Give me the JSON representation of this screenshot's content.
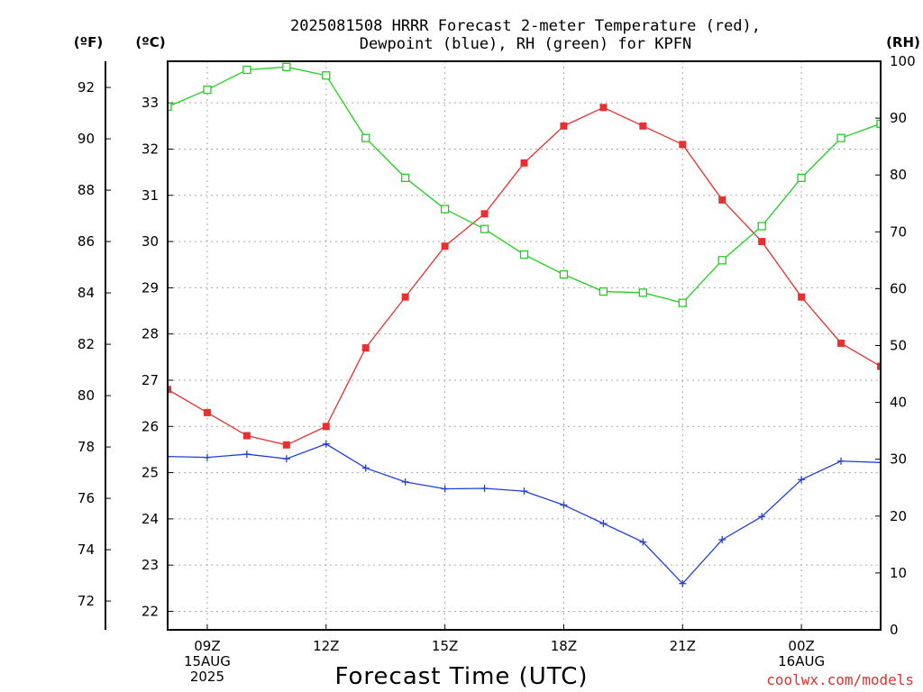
{
  "chart_data": {
    "type": "line",
    "title_lines": [
      "2025081508 HRRR Forecast 2-meter Temperature (red),",
      "Dewpoint (blue), RH (green) for KPFN"
    ],
    "units": {
      "fahrenheit": "(ºF)",
      "celsius": "(ºC)",
      "rh": "(RH)"
    },
    "xlabel": "Forecast Time (UTC)",
    "watermark": "coolwx.com/models",
    "x_hours": [
      0,
      1,
      2,
      3,
      4,
      5,
      6,
      7,
      8,
      9,
      10,
      11,
      12,
      13,
      14,
      15,
      16,
      17,
      18
    ],
    "x_ticks": [
      {
        "hour": 1,
        "lines": [
          "09Z",
          "15AUG",
          "2025"
        ]
      },
      {
        "hour": 4,
        "lines": [
          "12Z"
        ]
      },
      {
        "hour": 7,
        "lines": [
          "15Z"
        ]
      },
      {
        "hour": 10,
        "lines": [
          "18Z"
        ]
      },
      {
        "hour": 13,
        "lines": [
          "21Z"
        ]
      },
      {
        "hour": 16,
        "lines": [
          "00Z",
          "16AUG"
        ]
      }
    ],
    "celsius_axis": {
      "min": 21.6,
      "max": 33.9,
      "ticks": [
        22,
        23,
        24,
        25,
        26,
        27,
        28,
        29,
        30,
        31,
        32,
        33
      ]
    },
    "fahrenheit_axis": {
      "ticks": [
        72,
        74,
        76,
        78,
        80,
        82,
        84,
        86,
        88,
        90,
        92
      ]
    },
    "rh_axis": {
      "min": 0,
      "max": 100,
      "ticks": [
        0,
        10,
        20,
        30,
        40,
        50,
        60,
        70,
        80,
        90,
        100
      ]
    },
    "grid": true,
    "series": [
      {
        "name": "Temperature",
        "axis": "celsius",
        "color": "#e83030",
        "marker": "filled-square",
        "values": [
          26.8,
          26.3,
          25.8,
          25.6,
          26.0,
          27.7,
          28.8,
          29.9,
          30.6,
          31.7,
          32.5,
          32.9,
          32.5,
          32.1,
          30.9,
          30.0,
          28.8,
          27.8,
          27.3
        ]
      },
      {
        "name": "Dewpoint",
        "axis": "celsius",
        "color": "#2040e0",
        "marker": "plus",
        "values": [
          25.35,
          25.33,
          25.4,
          25.3,
          25.62,
          25.1,
          24.8,
          24.65,
          24.66,
          24.6,
          24.3,
          23.9,
          23.5,
          22.6,
          23.55,
          24.05,
          24.85,
          25.25,
          25.22
        ]
      },
      {
        "name": "RH",
        "axis": "rh",
        "color": "#20d020",
        "marker": "open-square",
        "values": [
          92.0,
          95.0,
          98.5,
          99.0,
          97.5,
          86.5,
          79.5,
          74.0,
          70.5,
          66.0,
          62.5,
          59.5,
          59.3,
          57.5,
          65.0,
          71.0,
          79.5,
          86.5,
          89.0
        ]
      }
    ]
  }
}
